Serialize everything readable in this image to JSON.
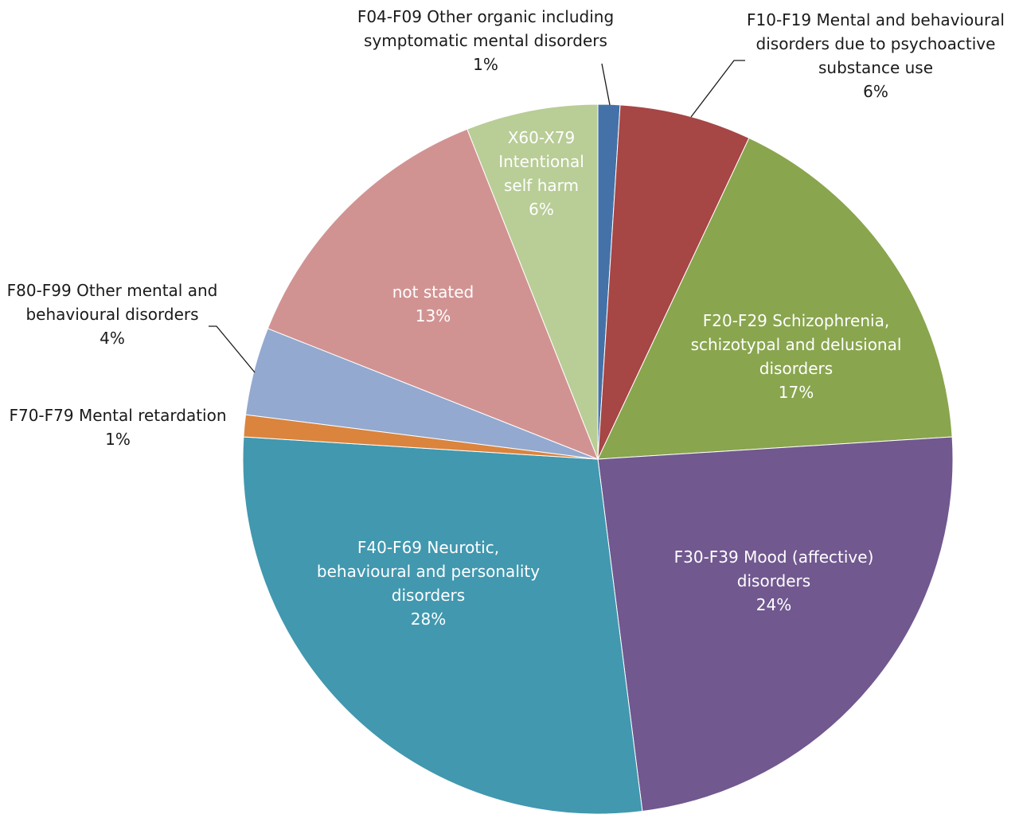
{
  "chart_data": {
    "type": "pie",
    "title": "",
    "slices": [
      {
        "label": [
          "F04-F09 Other organic including",
          "symptomatic mental disorders"
        ],
        "value": 1,
        "value_label": "1%",
        "color": "#4472A8"
      },
      {
        "label": [
          "F10-F19 Mental and behavioural",
          "disorders due to psychoactive",
          "substance use"
        ],
        "value": 6,
        "value_label": "6%",
        "color": "#A64645"
      },
      {
        "label": [
          "F20-F29 Schizophrenia,",
          "schizotypal and delusional",
          "disorders"
        ],
        "value": 17,
        "value_label": "17%",
        "color": "#89A54E"
      },
      {
        "label": [
          "F30-F39 Mood (affective)",
          "disorders"
        ],
        "value": 24,
        "value_label": "24%",
        "color": "#71588F"
      },
      {
        "label": [
          "F40-F69 Neurotic,",
          "behavioural and personality",
          "disorders"
        ],
        "value": 28,
        "value_label": "28%",
        "color": "#4198AF"
      },
      {
        "label": [
          "F70-F79 Mental retardation"
        ],
        "value": 1,
        "value_label": "1%",
        "color": "#DB843D"
      },
      {
        "label": [
          "F80-F99 Other mental and",
          "behavioural disorders"
        ],
        "value": 4,
        "value_label": "4%",
        "color": "#93A9CF"
      },
      {
        "label": [
          "not stated"
        ],
        "value": 13,
        "value_label": "13%",
        "color": "#D19392"
      },
      {
        "label": [
          "X60-X79",
          "Intentional",
          "self harm"
        ],
        "value": 6,
        "value_label": "6%",
        "color": "#B9CD96"
      }
    ]
  }
}
